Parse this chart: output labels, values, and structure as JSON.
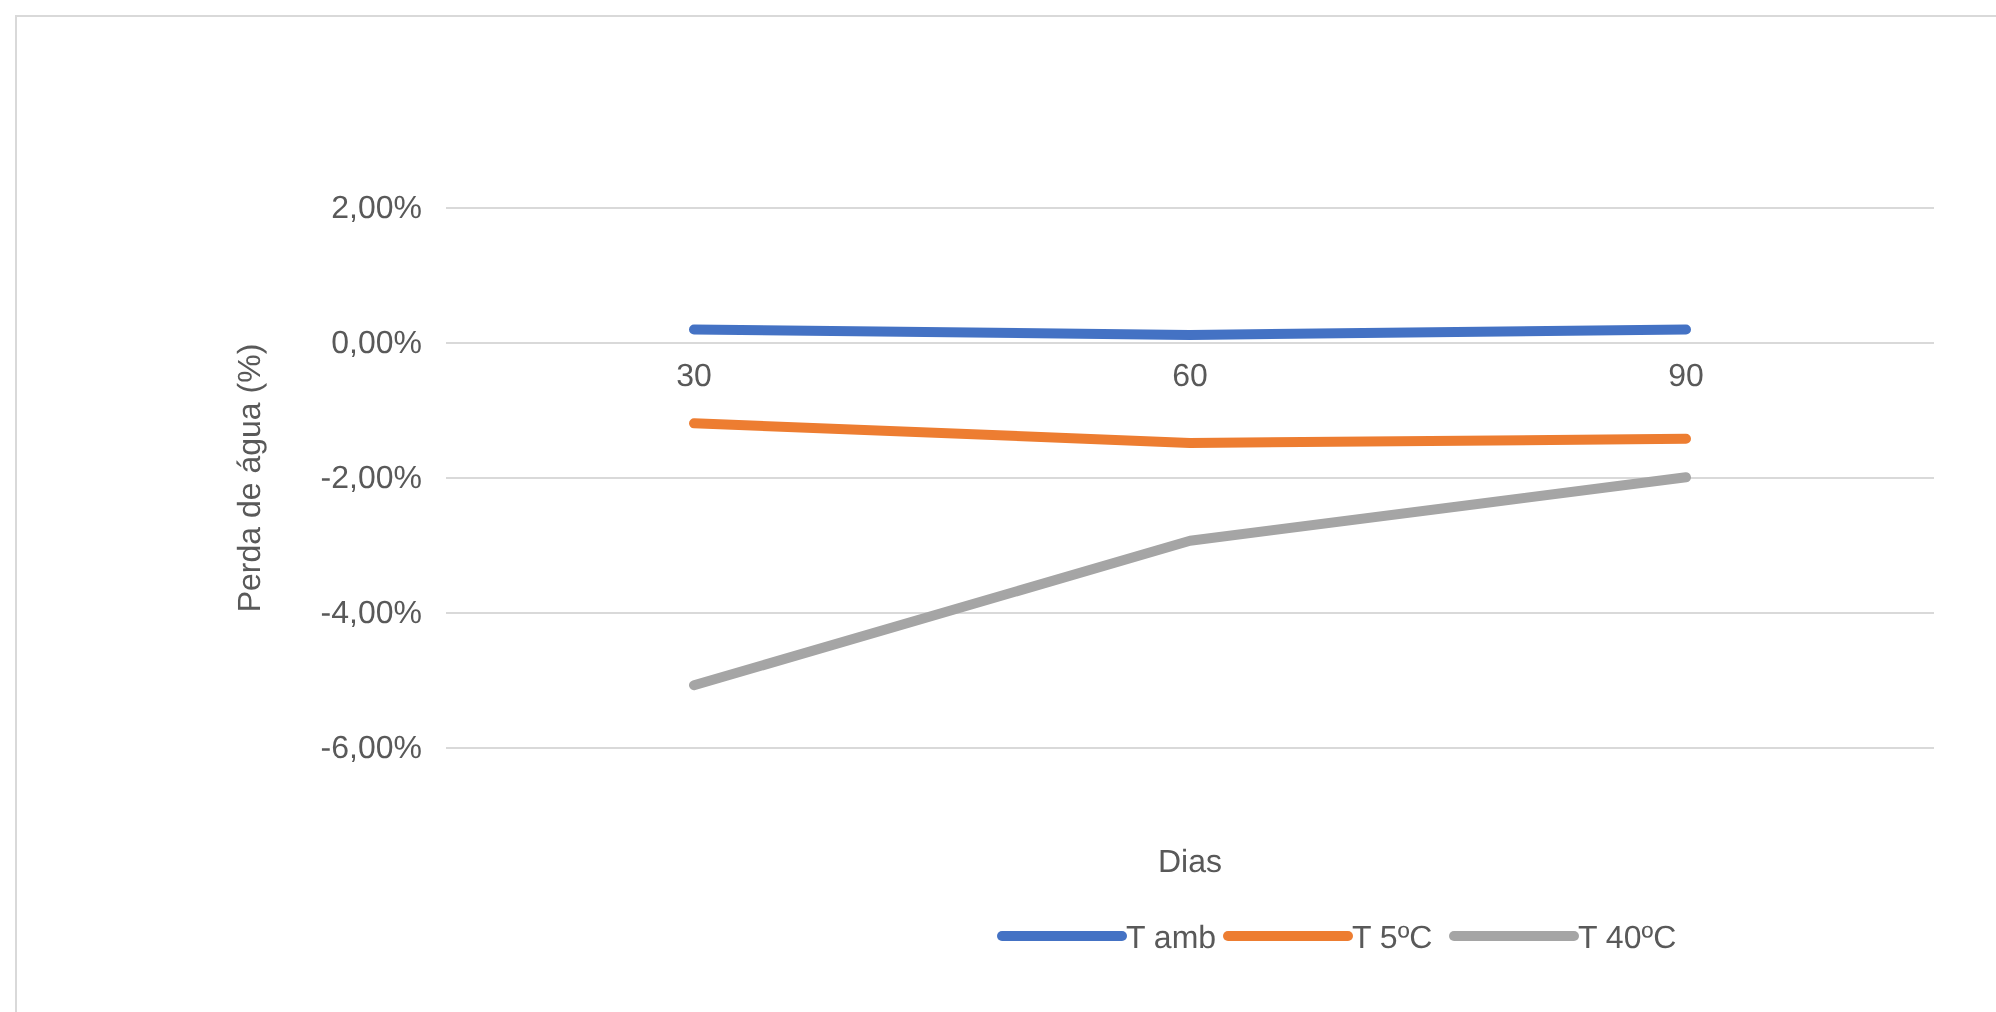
{
  "chart_data": {
    "type": "line",
    "xlabel": "Dias",
    "ylabel": "Perda de água (%)",
    "categories": [
      "30",
      "60",
      "90"
    ],
    "series": [
      {
        "name": "T amb",
        "color": "#4472c4",
        "values": [
          0.2,
          0.12,
          0.2
        ]
      },
      {
        "name": "T 5ºC",
        "color": "#ed7d31",
        "values": [
          -1.19,
          -1.48,
          -1.42
        ]
      },
      {
        "name": "T 40ºC",
        "color": "#a5a5a5",
        "values": [
          -5.07,
          -2.93,
          -1.99
        ]
      }
    ],
    "ylim": [
      -6,
      2
    ],
    "yticks": [
      {
        "value": -6,
        "label": "-6,00%"
      },
      {
        "value": -4,
        "label": "-4,00%"
      },
      {
        "value": -2,
        "label": "-2,00%"
      },
      {
        "value": 0,
        "label": "0,00%"
      },
      {
        "value": 2,
        "label": "2,00%"
      }
    ],
    "grid": "y",
    "legend": "bottom",
    "marker": "none",
    "line_style": "solid"
  }
}
